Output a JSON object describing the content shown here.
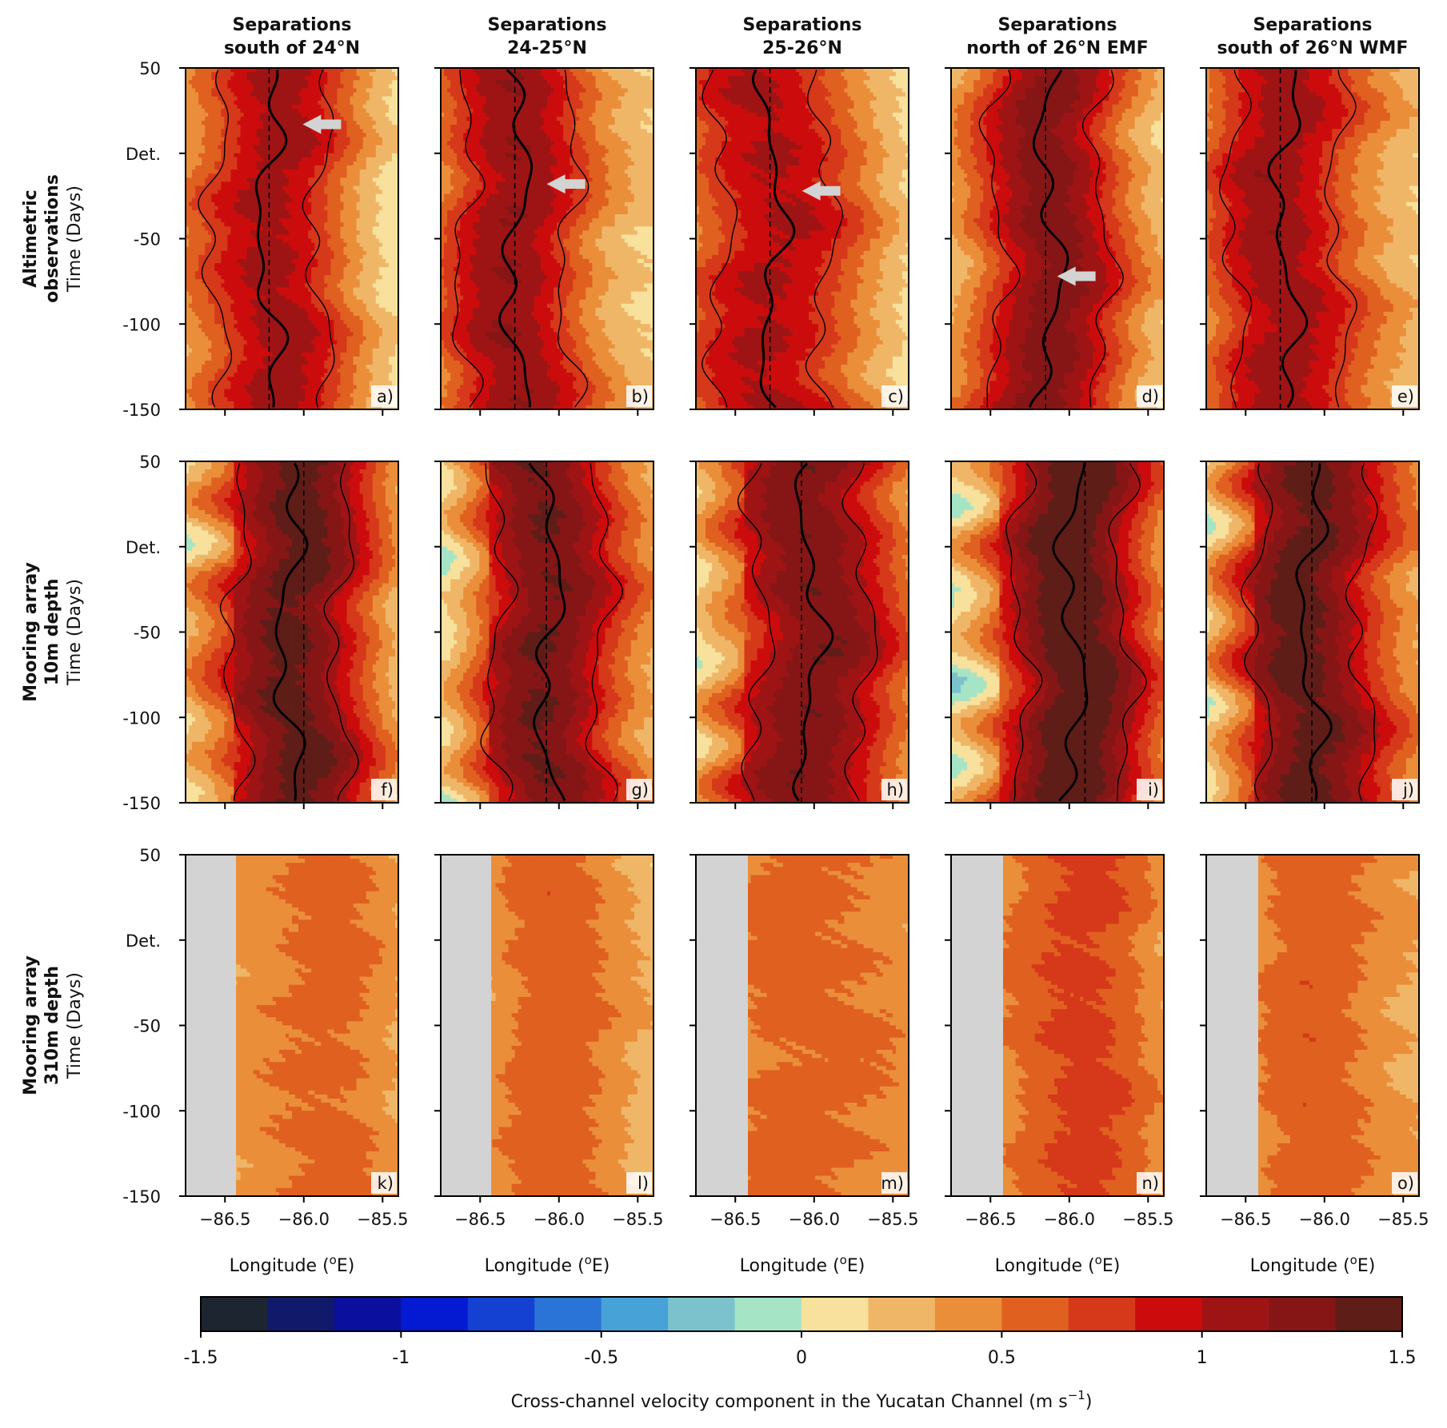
{
  "chart_data": {
    "type": "heatmap",
    "title": "",
    "columns": [
      {
        "title_line1": "Separations",
        "title_line2": "south of 24°N"
      },
      {
        "title_line1": "Separations",
        "title_line2": "24-25°N"
      },
      {
        "title_line1": "Separations",
        "title_line2": "25-26°N"
      },
      {
        "title_line1": "Separations",
        "title_line2": "north of 26°N EMF"
      },
      {
        "title_line1": "Separations",
        "title_line2": "south of 26°N WMF"
      }
    ],
    "rows": [
      {
        "label_bold_1": "Altimetric",
        "label_bold_2": "observations",
        "label_regular": "Time (Days)"
      },
      {
        "label_bold_1": "Mooring array",
        "label_bold_2": "10m depth",
        "label_regular": "Time (Days)"
      },
      {
        "label_bold_1": "Mooring array",
        "label_bold_2": "310m depth",
        "label_regular": "Time (Days)"
      }
    ],
    "panel_letters": [
      "a)",
      "b)",
      "c)",
      "d)",
      "e)",
      "f)",
      "g)",
      "h)",
      "i)",
      "j)",
      "k)",
      "l)",
      "m)",
      "n)",
      "o)"
    ],
    "xlim": [
      -86.75,
      -85.4
    ],
    "ylim": [
      -150,
      50
    ],
    "xticks": [
      -86.5,
      -86.0,
      -85.5
    ],
    "xtick_labels": [
      "−86.5",
      "−86.0",
      "−85.5"
    ],
    "yticks": [
      50,
      0,
      -50,
      -100,
      -150
    ],
    "ytick_labels": [
      "50",
      "Det.",
      "-50",
      "-100",
      "-150"
    ],
    "xlabel": "Longitude (°E)",
    "xlabel_prefix": "Longitude (",
    "xlabel_super": "o",
    "xlabel_suffix": "E)",
    "dashed_longitudes": [
      [
        -86.22,
        -86.28,
        -86.28,
        -86.15,
        -86.28
      ],
      [
        -86.0,
        -86.08,
        -86.08,
        -85.9,
        -86.08
      ]
    ],
    "core_longitudes": [
      [
        -86.23,
        -86.27,
        -86.26,
        -86.12,
        -86.24
      ],
      [
        -86.1,
        -86.06,
        -86.02,
        -85.98,
        -86.09
      ],
      [
        -86.0,
        -86.0,
        -85.98,
        -86.0,
        -86.0
      ]
    ],
    "peak_velocity_m_s": [
      [
        1.05,
        1.1,
        1.08,
        1.2,
        1.1
      ],
      [
        1.4,
        1.3,
        1.35,
        1.45,
        1.4
      ],
      [
        0.6,
        0.6,
        0.65,
        0.75,
        0.62
      ]
    ],
    "arrows": [
      {
        "panel": "a)",
        "time_days": 17,
        "longitude": -85.88
      },
      {
        "panel": "b)",
        "time_days": -18,
        "longitude": -85.95
      },
      {
        "panel": "c)",
        "time_days": -22,
        "longitude": -85.95
      },
      {
        "panel": "d)",
        "time_days": -72,
        "longitude": -85.95
      }
    ],
    "masked_region": {
      "rows": [
        "k)-o)"
      ],
      "longitude_max": [
        -86.43,
        -86.43,
        -86.42,
        -86.42,
        -86.42
      ]
    },
    "colorbar": {
      "vmin": -1.5,
      "vmax": 1.5,
      "levels": 18,
      "tick_values": [
        -1.5,
        -1,
        -0.5,
        0,
        0.5,
        1,
        1.5
      ],
      "tick_labels": [
        "-1.5",
        "-1",
        "-0.5",
        "0",
        "0.5",
        "1",
        "1.5"
      ],
      "label_main": "Cross-channel velocity component in the Yucatan Channel (m s",
      "label_super": "−1",
      "label_end": ")",
      "colors": [
        "#1c2530",
        "#111a6a",
        "#0a0f9e",
        "#0419d2",
        "#1541d2",
        "#2a74d8",
        "#47a2d8",
        "#7cc2cc",
        "#a6e4c6",
        "#f7e19c",
        "#f0b668",
        "#ea8e3a",
        "#e06020",
        "#d6381a",
        "#cc0c0c",
        "#9e1414",
        "#861616",
        "#5f1d18"
      ]
    },
    "colors": {
      "masked": "#d3d3d3",
      "contour": "#000000",
      "arrow": "#d3d3d3"
    }
  }
}
